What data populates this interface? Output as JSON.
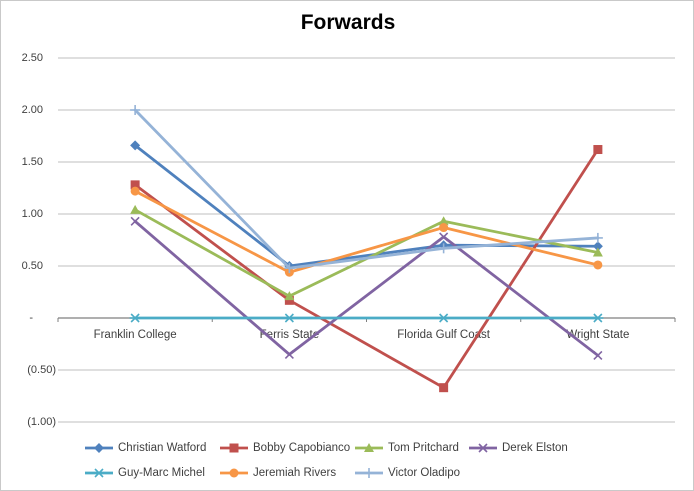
{
  "frame": {
    "background": "#ffffff",
    "border_color": "#c9c9c9"
  },
  "chart_data": {
    "type": "line",
    "title": "Forwards",
    "categories": [
      "Franklin College",
      "Ferris State",
      "Florida Gulf Coast",
      "Wright State"
    ],
    "series": [
      {
        "name": "Christian Watford",
        "color": "#4F81BD",
        "marker": "diamond",
        "values": [
          1.66,
          0.5,
          0.7,
          0.69
        ]
      },
      {
        "name": "Bobby Capobianco",
        "color": "#C0504D",
        "marker": "square",
        "values": [
          1.28,
          0.17,
          -0.67,
          1.62
        ]
      },
      {
        "name": "Tom Pritchard",
        "color": "#9BBB59",
        "marker": "triangle",
        "values": [
          1.04,
          0.21,
          0.93,
          0.63
        ]
      },
      {
        "name": "Derek Elston",
        "color": "#8064A2",
        "marker": "x",
        "values": [
          0.93,
          -0.35,
          0.78,
          -0.36
        ]
      },
      {
        "name": "Guy-Marc Michel",
        "color": "#4BACC6",
        "marker": "star",
        "values": [
          0.0,
          0.0,
          0.0,
          0.0
        ]
      },
      {
        "name": "Jeremiah Rivers",
        "color": "#F79646",
        "marker": "circle",
        "values": [
          1.22,
          0.44,
          0.87,
          0.51
        ]
      },
      {
        "name": "Victor Oladipo",
        "color": "#95B3D7",
        "marker": "plus",
        "values": [
          2.0,
          0.48,
          0.67,
          0.77
        ]
      }
    ],
    "y_ticks": [
      {
        "value": 2.5,
        "label": "2.50"
      },
      {
        "value": 2.0,
        "label": "2.00"
      },
      {
        "value": 1.5,
        "label": "1.50"
      },
      {
        "value": 1.0,
        "label": "1.00"
      },
      {
        "value": 0.5,
        "label": "0.50"
      },
      {
        "value": 0.0,
        "label": "-"
      },
      {
        "value": -0.5,
        "label": "(0.50)"
      },
      {
        "value": -1.0,
        "label": "(1.00)"
      }
    ],
    "ylim": [
      -1.0,
      2.5
    ],
    "grid": true,
    "legend_position": "bottom",
    "legend_rows": [
      4,
      3
    ],
    "colors": {
      "gridline": "#bfbfbf",
      "axis": "#7f7f7f",
      "tick_text": "#3f3f3f",
      "category_text": "#3f3f3f",
      "legend_text": "#3f3f3f",
      "title_text": "#000000"
    }
  }
}
